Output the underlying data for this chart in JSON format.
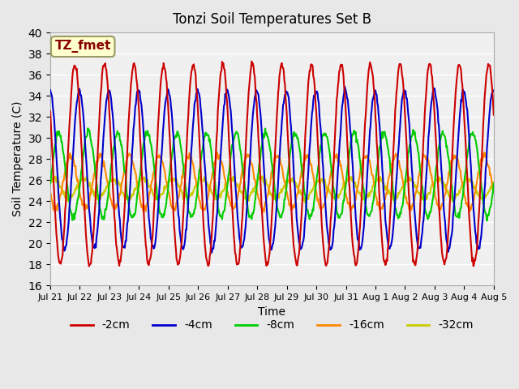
{
  "title": "Tonzi Soil Temperatures Set B",
  "xlabel": "Time",
  "ylabel": "Soil Temperature (C)",
  "ylim": [
    16,
    40
  ],
  "yticks": [
    16,
    18,
    20,
    22,
    24,
    26,
    28,
    30,
    32,
    34,
    36,
    38,
    40
  ],
  "background_color": "#e8e8e8",
  "plot_bg_color": "#f0f0f0",
  "annotation_text": "TZ_fmet",
  "annotation_bg": "#ffffcc",
  "annotation_fg": "#880000",
  "series_colors": [
    "#cc0000",
    "#0000cc",
    "#00cc00",
    "#ff8800",
    "#cccc00"
  ],
  "series_labels": [
    "-2cm",
    "-4cm",
    "-8cm",
    "-16cm",
    "-32cm"
  ],
  "n_days": 15,
  "samples_per_day": 48,
  "amplitudes": [
    9.5,
    7.5,
    4.0,
    2.5,
    0.9
  ],
  "means": [
    27.5,
    27.0,
    26.5,
    25.8,
    25.2
  ],
  "phase_offsets": [
    0.0,
    0.15,
    0.45,
    0.85,
    1.3
  ],
  "tick_labels": [
    "Jul 21",
    "Jul 22",
    "Jul 23",
    "Jul 24",
    "Jul 25",
    "Jul 26",
    "Jul 27",
    "Jul 28",
    "Jul 29",
    "Jul 30",
    "Jul 31",
    "Aug 1",
    "Aug 2",
    "Aug 3",
    "Aug 4",
    "Aug 5"
  ]
}
